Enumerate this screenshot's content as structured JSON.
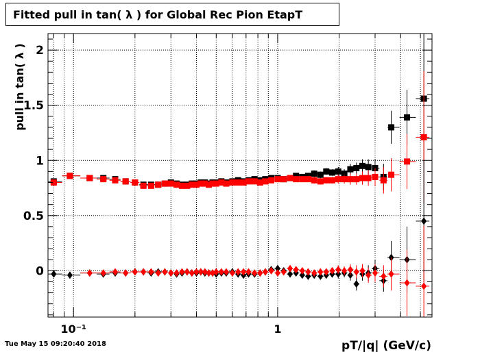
{
  "title": "Fitted pull in tan( λ ) for Global Rec Pion EtapT",
  "timestamp": "Tue May 15 09:20:40 2018",
  "chart_data": {
    "type": "scatter",
    "title": "Fitted pull in tan( λ ) for Global Rec Pion EtapT",
    "xlabel": "pT/|q| (GeV/c)",
    "ylabel": "pull in tan( λ )",
    "x_scale": "log",
    "xlim": [
      0.075,
      5.7
    ],
    "ylim": [
      -0.42,
      2.15
    ],
    "yticks": [
      0,
      0.5,
      1,
      1.5,
      2
    ],
    "ytick_labels": [
      "0",
      "0.5",
      "1",
      "1.5",
      "2"
    ],
    "xticks": [
      0.1,
      1
    ],
    "xtick_labels": [
      "10⁻¹",
      "1"
    ],
    "grid": true,
    "series": [
      {
        "marker": "square",
        "color": "#000000",
        "x": [
          0.08,
          0.096,
          0.12,
          0.14,
          0.16,
          0.18,
          0.2,
          0.22,
          0.24,
          0.26,
          0.28,
          0.3,
          0.32,
          0.34,
          0.36,
          0.38,
          0.4,
          0.42,
          0.44,
          0.46,
          0.48,
          0.5,
          0.53,
          0.56,
          0.6,
          0.64,
          0.68,
          0.72,
          0.77,
          0.82,
          0.87,
          0.93,
          1.0,
          1.07,
          1.15,
          1.23,
          1.32,
          1.41,
          1.51,
          1.62,
          1.73,
          1.85,
          1.98,
          2.12,
          2.27,
          2.43,
          2.6,
          2.78,
          3.0,
          3.3,
          3.6,
          4.3,
          5.2
        ],
        "y": [
          0.81,
          0.86,
          0.84,
          0.84,
          0.83,
          0.81,
          0.8,
          0.78,
          0.78,
          0.78,
          0.79,
          0.8,
          0.79,
          0.78,
          0.78,
          0.79,
          0.79,
          0.8,
          0.8,
          0.79,
          0.8,
          0.8,
          0.81,
          0.8,
          0.81,
          0.82,
          0.81,
          0.82,
          0.83,
          0.82,
          0.83,
          0.84,
          0.84,
          0.83,
          0.84,
          0.86,
          0.85,
          0.86,
          0.88,
          0.87,
          0.9,
          0.89,
          0.9,
          0.88,
          0.92,
          0.93,
          0.95,
          0.94,
          0.93,
          0.85,
          1.3,
          1.39,
          1.56
        ],
        "yerr": [
          0.02,
          0.01,
          0.01,
          0.01,
          0.01,
          0.01,
          0.01,
          0.01,
          0.01,
          0.01,
          0.01,
          0.01,
          0.01,
          0.01,
          0.01,
          0.01,
          0.01,
          0.01,
          0.01,
          0.01,
          0.01,
          0.01,
          0.01,
          0.01,
          0.01,
          0.01,
          0.01,
          0.01,
          0.01,
          0.01,
          0.01,
          0.01,
          0.02,
          0.02,
          0.02,
          0.02,
          0.02,
          0.02,
          0.03,
          0.03,
          0.03,
          0.03,
          0.04,
          0.04,
          0.05,
          0.05,
          0.06,
          0.07,
          0.08,
          0.12,
          0.15,
          0.25,
          0.6
        ]
      },
      {
        "marker": "square",
        "color": "#ff0000",
        "x": [
          0.08,
          0.096,
          0.12,
          0.14,
          0.16,
          0.18,
          0.2,
          0.22,
          0.24,
          0.26,
          0.28,
          0.3,
          0.32,
          0.34,
          0.36,
          0.38,
          0.4,
          0.42,
          0.44,
          0.46,
          0.48,
          0.5,
          0.53,
          0.56,
          0.6,
          0.64,
          0.68,
          0.72,
          0.77,
          0.82,
          0.87,
          0.93,
          1.0,
          1.07,
          1.15,
          1.23,
          1.32,
          1.41,
          1.51,
          1.62,
          1.73,
          1.85,
          1.98,
          2.12,
          2.27,
          2.43,
          2.6,
          2.78,
          3.0,
          3.3,
          3.6,
          4.3,
          5.2
        ],
        "y": [
          0.8,
          0.86,
          0.84,
          0.83,
          0.82,
          0.81,
          0.8,
          0.77,
          0.77,
          0.78,
          0.79,
          0.79,
          0.78,
          0.77,
          0.77,
          0.78,
          0.78,
          0.79,
          0.79,
          0.78,
          0.79,
          0.79,
          0.8,
          0.79,
          0.8,
          0.8,
          0.8,
          0.81,
          0.81,
          0.8,
          0.81,
          0.82,
          0.83,
          0.83,
          0.84,
          0.83,
          0.83,
          0.83,
          0.82,
          0.81,
          0.82,
          0.82,
          0.83,
          0.83,
          0.83,
          0.83,
          0.84,
          0.84,
          0.85,
          0.82,
          0.87,
          0.99,
          1.21
        ],
        "yerr": [
          0.02,
          0.01,
          0.01,
          0.01,
          0.01,
          0.01,
          0.01,
          0.01,
          0.01,
          0.01,
          0.01,
          0.01,
          0.01,
          0.01,
          0.01,
          0.01,
          0.01,
          0.01,
          0.01,
          0.01,
          0.01,
          0.01,
          0.01,
          0.01,
          0.01,
          0.01,
          0.01,
          0.01,
          0.01,
          0.01,
          0.01,
          0.01,
          0.02,
          0.02,
          0.02,
          0.02,
          0.02,
          0.02,
          0.03,
          0.03,
          0.03,
          0.03,
          0.04,
          0.04,
          0.05,
          0.05,
          0.06,
          0.07,
          0.08,
          0.12,
          0.15,
          0.25,
          0.6
        ]
      },
      {
        "marker": "diamond",
        "color": "#000000",
        "x": [
          0.08,
          0.096,
          0.12,
          0.14,
          0.16,
          0.18,
          0.2,
          0.22,
          0.24,
          0.26,
          0.28,
          0.3,
          0.32,
          0.34,
          0.36,
          0.38,
          0.4,
          0.42,
          0.44,
          0.46,
          0.48,
          0.5,
          0.53,
          0.56,
          0.6,
          0.64,
          0.68,
          0.72,
          0.77,
          0.82,
          0.87,
          0.93,
          1.0,
          1.07,
          1.15,
          1.23,
          1.32,
          1.41,
          1.51,
          1.62,
          1.73,
          1.85,
          1.98,
          2.12,
          2.27,
          2.43,
          2.6,
          2.78,
          3.0,
          3.3,
          3.6,
          4.3,
          5.2
        ],
        "y": [
          -0.03,
          -0.04,
          -0.02,
          -0.03,
          -0.02,
          -0.02,
          -0.01,
          -0.01,
          -0.02,
          -0.01,
          -0.01,
          -0.02,
          -0.03,
          -0.02,
          -0.01,
          -0.02,
          -0.02,
          -0.01,
          -0.02,
          -0.02,
          -0.02,
          -0.03,
          -0.02,
          -0.02,
          -0.01,
          -0.03,
          -0.04,
          -0.03,
          -0.03,
          -0.02,
          -0.01,
          0.01,
          0.02,
          0.0,
          -0.03,
          -0.02,
          -0.04,
          -0.05,
          -0.04,
          -0.05,
          -0.04,
          -0.03,
          -0.03,
          -0.02,
          -0.04,
          -0.12,
          -0.03,
          -0.02,
          0.02,
          -0.09,
          0.12,
          0.1,
          0.45
        ],
        "yerr": [
          0.03,
          0.02,
          0.01,
          0.01,
          0.01,
          0.01,
          0.01,
          0.01,
          0.01,
          0.01,
          0.01,
          0.01,
          0.01,
          0.01,
          0.01,
          0.01,
          0.01,
          0.01,
          0.01,
          0.01,
          0.01,
          0.01,
          0.01,
          0.01,
          0.01,
          0.01,
          0.01,
          0.01,
          0.01,
          0.02,
          0.02,
          0.02,
          0.02,
          0.02,
          0.02,
          0.02,
          0.02,
          0.03,
          0.03,
          0.03,
          0.03,
          0.03,
          0.04,
          0.04,
          0.05,
          0.06,
          0.06,
          0.07,
          0.08,
          0.1,
          0.15,
          0.3,
          0.55
        ]
      },
      {
        "marker": "diamond",
        "color": "#ff0000",
        "x": [
          0.08,
          0.096,
          0.12,
          0.14,
          0.16,
          0.18,
          0.2,
          0.22,
          0.24,
          0.26,
          0.28,
          0.3,
          0.32,
          0.34,
          0.36,
          0.38,
          0.4,
          0.42,
          0.44,
          0.46,
          0.48,
          0.5,
          0.53,
          0.56,
          0.6,
          0.64,
          0.68,
          0.72,
          0.77,
          0.82,
          0.87,
          0.93,
          1.0,
          1.07,
          1.15,
          1.23,
          1.32,
          1.41,
          1.51,
          1.62,
          1.73,
          1.85,
          1.98,
          2.12,
          2.27,
          2.43,
          2.6,
          2.78,
          3.0,
          3.3,
          3.6,
          4.3,
          5.2
        ],
        "y": [
          null,
          null,
          -0.02,
          -0.02,
          -0.01,
          -0.02,
          -0.01,
          -0.01,
          -0.01,
          -0.02,
          -0.01,
          -0.02,
          -0.02,
          -0.01,
          -0.01,
          -0.02,
          -0.01,
          -0.01,
          -0.01,
          -0.02,
          -0.02,
          -0.01,
          -0.01,
          -0.01,
          -0.02,
          -0.01,
          -0.01,
          -0.01,
          -0.02,
          -0.02,
          -0.01,
          0.0,
          -0.02,
          -0.01,
          0.02,
          0.01,
          0.0,
          -0.01,
          -0.02,
          -0.01,
          -0.01,
          0.0,
          0.01,
          0.0,
          0.01,
          -0.01,
          0.0,
          -0.04,
          -0.02,
          -0.05,
          -0.03,
          -0.11,
          -0.14
        ],
        "yerr": [
          0.02,
          0.02,
          0.01,
          0.01,
          0.01,
          0.01,
          0.01,
          0.01,
          0.01,
          0.01,
          0.01,
          0.01,
          0.01,
          0.01,
          0.01,
          0.01,
          0.01,
          0.01,
          0.01,
          0.01,
          0.01,
          0.01,
          0.01,
          0.01,
          0.01,
          0.01,
          0.01,
          0.01,
          0.01,
          0.02,
          0.02,
          0.02,
          0.02,
          0.02,
          0.02,
          0.02,
          0.02,
          0.03,
          0.03,
          0.03,
          0.03,
          0.03,
          0.04,
          0.04,
          0.05,
          0.06,
          0.06,
          0.07,
          0.08,
          0.1,
          0.15,
          0.3,
          0.55
        ]
      }
    ]
  }
}
